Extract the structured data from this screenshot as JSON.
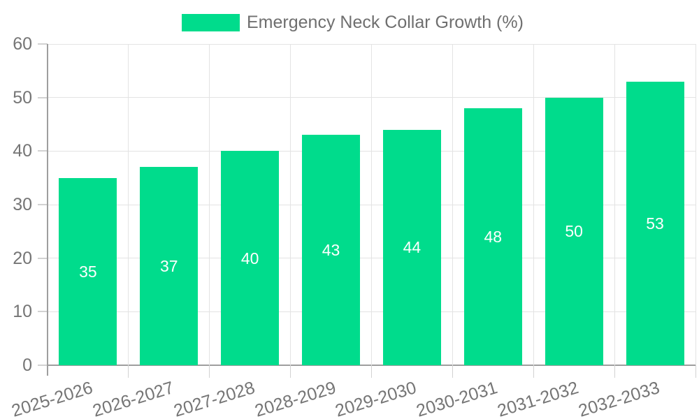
{
  "chart_data": {
    "type": "bar",
    "title": "Emergency Neck Collar Growth (%)",
    "categories": [
      "2025-2026",
      "2026-2027",
      "2027-2028",
      "2028-2029",
      "2029-2030",
      "2030-2031",
      "2031-2032",
      "2032-2033"
    ],
    "values": [
      35,
      37,
      40,
      43,
      44,
      48,
      50,
      53
    ],
    "xlabel": "",
    "ylabel": "",
    "ylim": [
      0,
      60
    ],
    "yticks": [
      0,
      10,
      20,
      30,
      40,
      50,
      60
    ],
    "grid": true,
    "legend_position": "top",
    "value_labels": "inside-center",
    "colors": {
      "bar": "#00DC8C",
      "value_label": "#FFFFFF",
      "axis_label": "#757575",
      "legend_text": "#6F6F6F",
      "gridline": "#E3E3E3",
      "axis_line": "#9E9E9E",
      "tick": "#D2D2D2",
      "background": "#FFFFFF"
    }
  }
}
